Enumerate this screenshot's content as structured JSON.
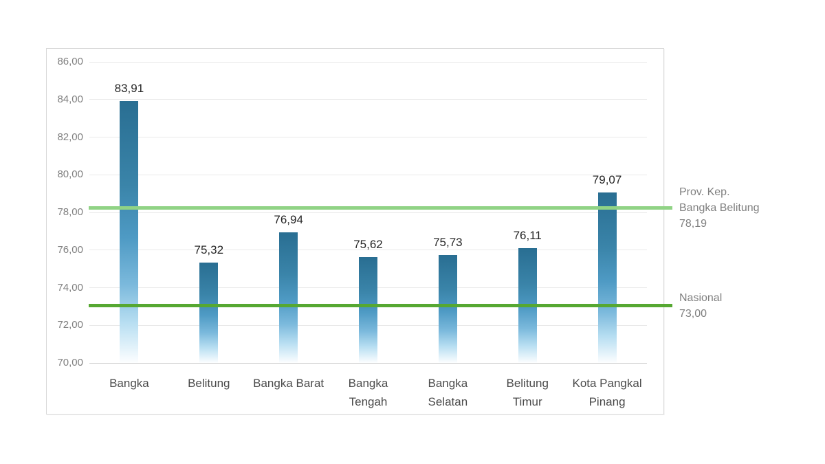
{
  "chart_data": {
    "type": "bar",
    "title": "",
    "xlabel": "",
    "ylabel": "",
    "categories": [
      "Bangka",
      "Belitung",
      "Bangka Barat",
      "Bangka Tengah",
      "Bangka Selatan",
      "Belitung Timur",
      "Kota Pangkal Pinang"
    ],
    "categories_display_lines": [
      [
        "Bangka"
      ],
      [
        "Belitung"
      ],
      [
        "Bangka Barat"
      ],
      [
        "Bangka",
        "Tengah"
      ],
      [
        "Bangka",
        "Selatan"
      ],
      [
        "Belitung",
        "Timur"
      ],
      [
        "Kota Pangkal",
        "Pinang"
      ]
    ],
    "values": [
      83.91,
      75.32,
      76.94,
      75.62,
      75.73,
      76.11,
      79.07
    ],
    "value_labels": [
      "83,91",
      "75,32",
      "76,94",
      "75,62",
      "75,73",
      "76,11",
      "79,07"
    ],
    "ylim": [
      70,
      86
    ],
    "ytick_interval": 2,
    "ytick_labels_top_to_bottom": [
      "86,00",
      "84,00",
      "82,00",
      "80,00",
      "78,00",
      "76,00",
      "74,00",
      "72,00",
      "70,00"
    ],
    "grid": true,
    "legend": "none",
    "reference_lines": [
      {
        "id": "prov-kep-bangka-belitung",
        "value": 78.19,
        "label_lines": [
          "Prov. Kep.",
          "Bangka Belitung",
          "78,19"
        ],
        "color": "#90D385"
      },
      {
        "id": "nasional",
        "value": 73.0,
        "label_lines": [
          "Nasional",
          "73,00"
        ],
        "color": "#56A832"
      }
    ],
    "colors": {
      "bar_gradient_top": "#296E92",
      "bar_gradient_upper_mid": "#3A84A9",
      "bar_gradient_mid": "#4E9AC4",
      "bar_gradient_lower": "#7BB9DC",
      "bar_gradient_low": "#B9DFF2",
      "bar_gradient_bottom": "#FDFEFF",
      "gridline": "#E9E9E9",
      "baseline": "#D2D2D2",
      "chart_border": "#D9D9D9",
      "ytick_text": "#7F7F7F",
      "category_text": "#4A4A4A",
      "value_text": "#262626",
      "ref_label_text": "#7F7F7F",
      "background": "#FFFFFF"
    }
  }
}
